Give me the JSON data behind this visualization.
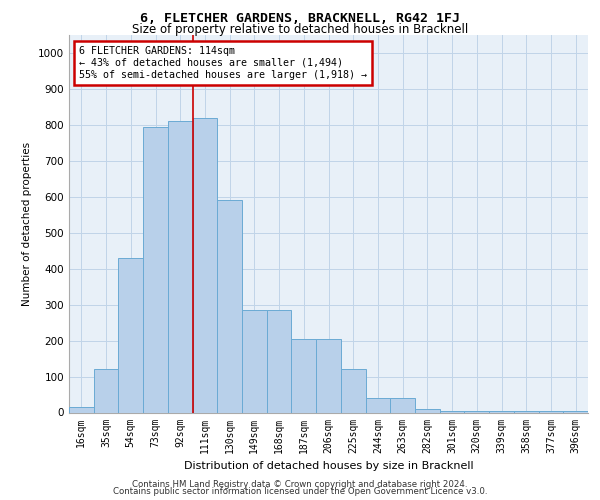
{
  "title": "6, FLETCHER GARDENS, BRACKNELL, RG42 1FJ",
  "subtitle": "Size of property relative to detached houses in Bracknell",
  "xlabel": "Distribution of detached houses by size in Bracknell",
  "ylabel": "Number of detached properties",
  "bar_labels": [
    "16sqm",
    "35sqm",
    "54sqm",
    "73sqm",
    "92sqm",
    "111sqm",
    "130sqm",
    "149sqm",
    "168sqm",
    "187sqm",
    "206sqm",
    "225sqm",
    "244sqm",
    "263sqm",
    "282sqm",
    "301sqm",
    "320sqm",
    "339sqm",
    "358sqm",
    "377sqm",
    "396sqm"
  ],
  "bar_values": [
    15,
    120,
    430,
    795,
    810,
    820,
    590,
    285,
    285,
    205,
    205,
    120,
    40,
    40,
    10,
    5,
    5,
    5,
    5,
    5,
    5
  ],
  "bar_color": "#b8d0ea",
  "bar_edge_color": "#6aaad4",
  "vline_index": 4.5,
  "vline_color": "#cc0000",
  "annotation_title": "6 FLETCHER GARDENS: 114sqm",
  "annotation_line1": "← 43% of detached houses are smaller (1,494)",
  "annotation_line2": "55% of semi-detached houses are larger (1,918) →",
  "annotation_box_color": "#cc0000",
  "ylim": [
    0,
    1050
  ],
  "yticks": [
    0,
    100,
    200,
    300,
    400,
    500,
    600,
    700,
    800,
    900,
    1000
  ],
  "grid_color": "#c0d4e8",
  "bg_color": "#e8f0f8",
  "footer_line1": "Contains HM Land Registry data © Crown copyright and database right 2024.",
  "footer_line2": "Contains public sector information licensed under the Open Government Licence v3.0."
}
